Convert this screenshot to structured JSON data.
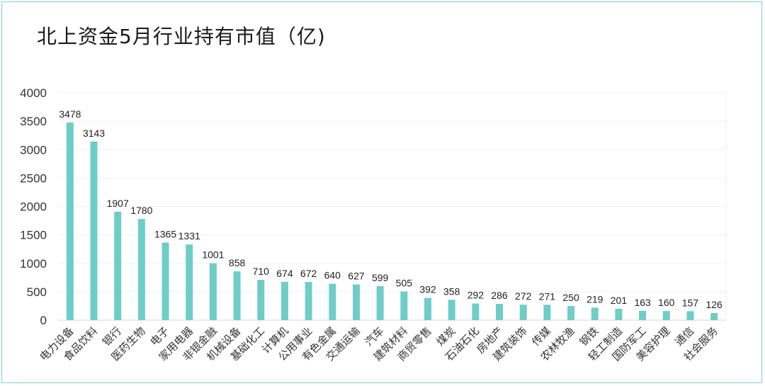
{
  "chart_data": {
    "type": "bar",
    "title": "北上资金5月行业持有市值（亿)",
    "categories": [
      "电力设备",
      "食品饮料",
      "银行",
      "医药生物",
      "电子",
      "家用电器",
      "非银金融",
      "机械设备",
      "基础化工",
      "计算机",
      "公用事业",
      "有色金属",
      "交通运输",
      "汽车",
      "建筑材料",
      "商贸零售",
      "煤炭",
      "石油石化",
      "房地产",
      "建筑装饰",
      "传媒",
      "农林牧渔",
      "钢铁",
      "轻工制造",
      "国防军工",
      "美容护理",
      "通信",
      "社会服务"
    ],
    "values": [
      3478,
      3143,
      1907,
      1780,
      1365,
      1331,
      1001,
      858,
      710,
      674,
      672,
      640,
      627,
      599,
      505,
      392,
      358,
      292,
      286,
      272,
      271,
      250,
      219,
      201,
      163,
      160,
      157,
      126
    ],
    "ylim": [
      0,
      4000
    ],
    "yticks": [
      0,
      500,
      1000,
      1500,
      2000,
      2500,
      3000,
      3500,
      4000
    ],
    "xlabel": "",
    "ylabel": "",
    "grid": true,
    "bar_color": "#6fcdc8"
  }
}
